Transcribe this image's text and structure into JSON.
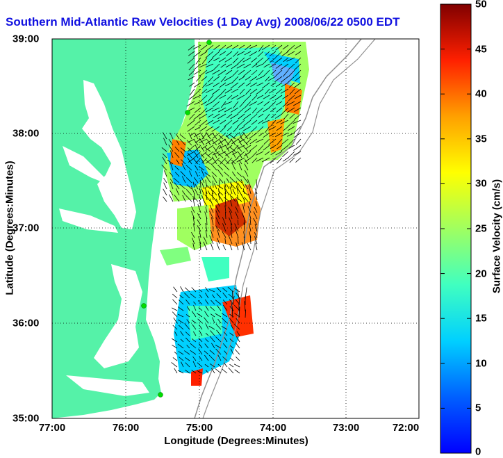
{
  "title": "Southern Mid-Atlantic Raw Velocities (1 Day Avg) 2008/06/22 0500 EDT",
  "map": {
    "xlabel": "Longitude (Degrees:Minutes)",
    "ylabel": "Latitude (Degrees:Minutes)",
    "xticks": [
      "77:00",
      "76:00",
      "75:00",
      "74:00",
      "73:00",
      "72:00"
    ],
    "yticks": [
      "39:00",
      "38:00",
      "37:00",
      "36:00",
      "35:00"
    ],
    "xlim": [
      -77,
      -72
    ],
    "ylim": [
      35,
      39
    ],
    "grid": true
  },
  "colorbar": {
    "label": "Surface Velocity (cm/s)",
    "ticks": [
      "50",
      "45",
      "40",
      "35",
      "30",
      "25",
      "20",
      "15",
      "10",
      "5",
      "0"
    ],
    "range": [
      0,
      50
    ]
  },
  "colors": {
    "land": "#55f2a8",
    "title": "#1010e0",
    "station": "#00dd00"
  }
}
